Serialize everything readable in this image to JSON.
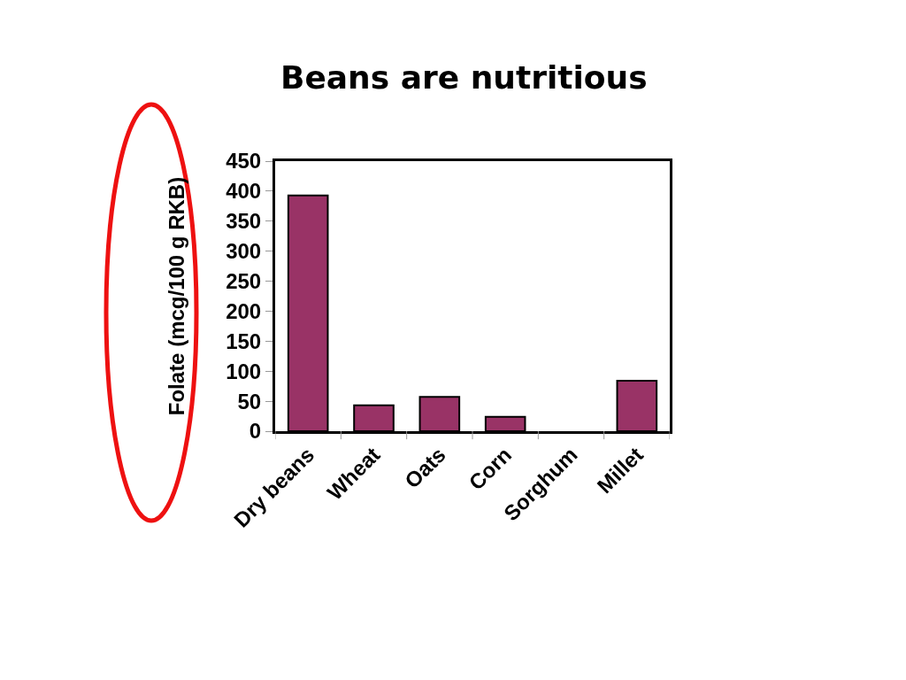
{
  "chart_data": {
    "type": "bar",
    "title": "Beans are nutritious",
    "ylabel": "Folate (mcg/100 g RKB)",
    "categories": [
      "Dry beans",
      "Wheat",
      "Oats",
      "Corn",
      "Sorghum",
      "Millet"
    ],
    "values": [
      393,
      43,
      57,
      24,
      0,
      84
    ],
    "color": "#993366",
    "ylim": [
      0,
      450
    ],
    "yticks": [
      0,
      50,
      100,
      150,
      200,
      250,
      300,
      350,
      400,
      450
    ]
  }
}
